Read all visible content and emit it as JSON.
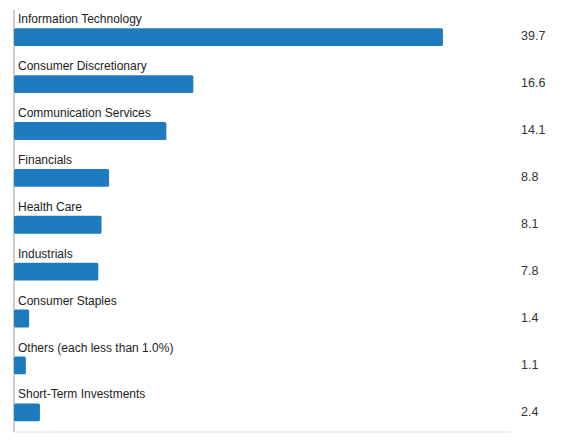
{
  "chart_data": {
    "type": "bar",
    "orientation": "horizontal",
    "categories": [
      "Information Technology",
      "Consumer Discretionary",
      "Communication Services",
      "Financials",
      "Health Care",
      "Industrials",
      "Consumer Staples",
      "Others (each less than 1.0%)",
      "Short-Term Investments"
    ],
    "values": [
      39.7,
      16.6,
      14.1,
      8.8,
      8.1,
      7.8,
      1.4,
      1.1,
      2.4
    ],
    "color": "#1F7BC0",
    "xlim": [
      0,
      46
    ],
    "data_labels": true,
    "tick_labels": false
  }
}
